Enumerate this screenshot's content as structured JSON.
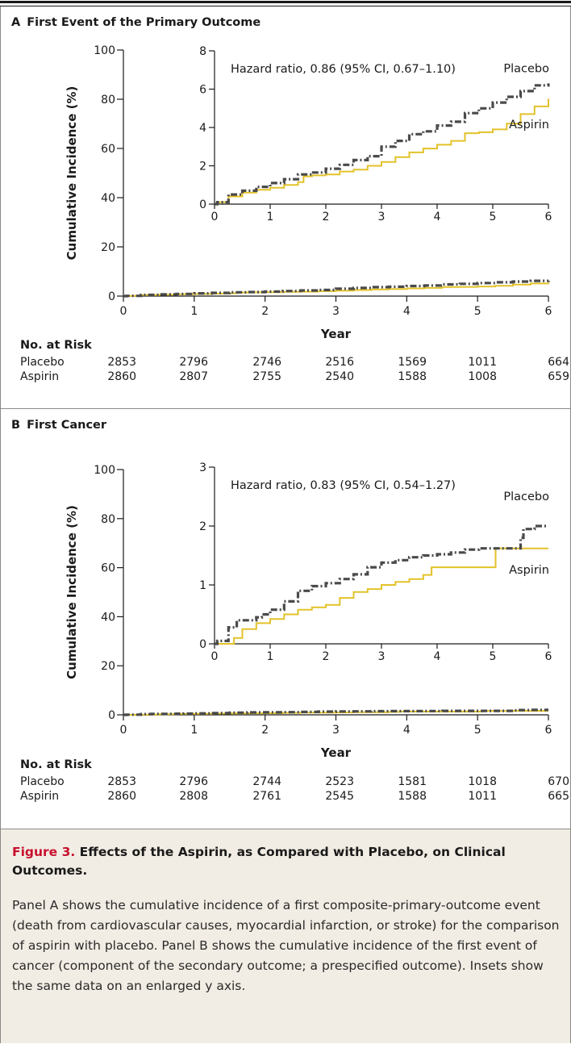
{
  "chart_data": [
    {
      "type": "line",
      "panel_letter": "A",
      "title": "First Event of the Primary Outcome",
      "xlabel": "Year",
      "ylabel": "Cumulative Incidence (%)",
      "xlim": [
        0,
        6
      ],
      "ylim": [
        0,
        100
      ],
      "x_ticks": [
        0,
        1,
        2,
        3,
        4,
        5,
        6
      ],
      "y_ticks": [
        0,
        20,
        40,
        60,
        80,
        100
      ],
      "series": [
        {
          "name": "Placebo",
          "color": "#4a4a4a",
          "style": "dash-dot",
          "points": [
            [
              0,
              0
            ],
            [
              0.05,
              0.1
            ],
            [
              0.25,
              0.5
            ],
            [
              0.5,
              0.7
            ],
            [
              0.75,
              0.9
            ],
            [
              1,
              1.1
            ],
            [
              1.25,
              1.3
            ],
            [
              1.5,
              1.55
            ],
            [
              1.75,
              1.65
            ],
            [
              2,
              1.85
            ],
            [
              2.25,
              2.05
            ],
            [
              2.5,
              2.3
            ],
            [
              2.75,
              2.5
            ],
            [
              3,
              3.0
            ],
            [
              3.25,
              3.3
            ],
            [
              3.5,
              3.65
            ],
            [
              3.75,
              3.8
            ],
            [
              4,
              4.1
            ],
            [
              4.25,
              4.3
            ],
            [
              4.5,
              4.75
            ],
            [
              4.75,
              5.0
            ],
            [
              5,
              5.3
            ],
            [
              5.25,
              5.6
            ],
            [
              5.5,
              5.9
            ],
            [
              5.75,
              6.2
            ],
            [
              6,
              6.3
            ]
          ]
        },
        {
          "name": "Aspirin",
          "color": "#e3c22a",
          "style": "solid",
          "points": [
            [
              0,
              0
            ],
            [
              0.05,
              0.1
            ],
            [
              0.25,
              0.4
            ],
            [
              0.5,
              0.6
            ],
            [
              0.75,
              0.75
            ],
            [
              1,
              0.85
            ],
            [
              1.25,
              1.0
            ],
            [
              1.5,
              1.15
            ],
            [
              1.6,
              1.45
            ],
            [
              1.75,
              1.5
            ],
            [
              2,
              1.55
            ],
            [
              2.25,
              1.7
            ],
            [
              2.5,
              1.8
            ],
            [
              2.75,
              2.0
            ],
            [
              3,
              2.2
            ],
            [
              3.25,
              2.45
            ],
            [
              3.5,
              2.7
            ],
            [
              3.75,
              2.9
            ],
            [
              4,
              3.1
            ],
            [
              4.25,
              3.3
            ],
            [
              4.5,
              3.7
            ],
            [
              4.75,
              3.75
            ],
            [
              5,
              3.9
            ],
            [
              5.25,
              4.2
            ],
            [
              5.5,
              4.7
            ],
            [
              5.75,
              5.1
            ],
            [
              6,
              5.5
            ]
          ]
        }
      ],
      "inset": {
        "xlim": [
          0,
          6
        ],
        "ylim": [
          0,
          8
        ],
        "x_ticks": [
          0,
          1,
          2,
          3,
          4,
          5,
          6
        ],
        "y_ticks": [
          0,
          2,
          4,
          6,
          8
        ],
        "annotation": "Hazard ratio, 0.86 (95% CI, 0.67–1.10)",
        "legend": [
          {
            "name": "Placebo",
            "x": 6,
            "y": 6.3
          },
          {
            "name": "Aspirin",
            "x": 6,
            "y": 4.3
          }
        ]
      },
      "risk_table": {
        "header": "No. at Risk",
        "rows": [
          {
            "label": "Placebo",
            "values": [
              "2853",
              "2796",
              "2746",
              "2516",
              "1569",
              "1011",
              "664"
            ]
          },
          {
            "label": "Aspirin",
            "values": [
              "2860",
              "2807",
              "2755",
              "2540",
              "1588",
              "1008",
              "659"
            ]
          }
        ]
      }
    },
    {
      "type": "line",
      "panel_letter": "B",
      "title": "First Cancer",
      "xlabel": "Year",
      "ylabel": "Cumulative Incidence (%)",
      "xlim": [
        0,
        6
      ],
      "ylim": [
        0,
        100
      ],
      "x_ticks": [
        0,
        1,
        2,
        3,
        4,
        5,
        6
      ],
      "y_ticks": [
        0,
        20,
        40,
        60,
        80,
        100
      ],
      "series": [
        {
          "name": "Placebo",
          "color": "#4a4a4a",
          "style": "dash-dot",
          "points": [
            [
              0,
              0
            ],
            [
              0.05,
              0.05
            ],
            [
              0.25,
              0.28
            ],
            [
              0.4,
              0.4
            ],
            [
              0.75,
              0.45
            ],
            [
              0.85,
              0.5
            ],
            [
              1,
              0.58
            ],
            [
              1.25,
              0.72
            ],
            [
              1.5,
              0.9
            ],
            [
              1.75,
              0.98
            ],
            [
              2,
              1.03
            ],
            [
              2.25,
              1.1
            ],
            [
              2.5,
              1.18
            ],
            [
              2.75,
              1.3
            ],
            [
              3,
              1.38
            ],
            [
              3.25,
              1.42
            ],
            [
              3.5,
              1.47
            ],
            [
              3.75,
              1.5
            ],
            [
              4,
              1.52
            ],
            [
              4.25,
              1.55
            ],
            [
              4.5,
              1.6
            ],
            [
              4.75,
              1.62
            ],
            [
              5,
              1.62
            ],
            [
              5.25,
              1.62
            ],
            [
              5.5,
              1.8
            ],
            [
              5.55,
              1.95
            ],
            [
              5.75,
              2.0
            ],
            [
              6,
              2.0
            ]
          ]
        },
        {
          "name": "Aspirin",
          "color": "#e3c22a",
          "style": "solid",
          "points": [
            [
              0,
              0
            ],
            [
              0.25,
              0.0
            ],
            [
              0.35,
              0.1
            ],
            [
              0.5,
              0.25
            ],
            [
              0.75,
              0.35
            ],
            [
              1,
              0.42
            ],
            [
              1.25,
              0.5
            ],
            [
              1.5,
              0.58
            ],
            [
              1.75,
              0.62
            ],
            [
              2,
              0.66
            ],
            [
              2.25,
              0.78
            ],
            [
              2.5,
              0.88
            ],
            [
              2.75,
              0.93
            ],
            [
              3,
              1.0
            ],
            [
              3.25,
              1.05
            ],
            [
              3.5,
              1.1
            ],
            [
              3.75,
              1.17
            ],
            [
              3.9,
              1.3
            ],
            [
              4.25,
              1.3
            ],
            [
              4.75,
              1.3
            ],
            [
              5,
              1.3
            ],
            [
              5.05,
              1.62
            ],
            [
              5.5,
              1.62
            ],
            [
              6,
              1.62
            ]
          ]
        }
      ],
      "inset": {
        "xlim": [
          0,
          6
        ],
        "ylim": [
          0,
          3
        ],
        "x_ticks": [
          0,
          1,
          2,
          3,
          4,
          5,
          6
        ],
        "y_ticks": [
          0,
          1,
          2,
          3
        ],
        "annotation": "Hazard ratio, 0.83 (95% CI, 0.54–1.27)",
        "legend": [
          {
            "name": "Placebo",
            "x": 6,
            "y": 2.25
          },
          {
            "name": "Aspirin",
            "x": 6,
            "y": 1.3
          }
        ]
      },
      "risk_table": {
        "header": "No. at Risk",
        "rows": [
          {
            "label": "Placebo",
            "values": [
              "2853",
              "2796",
              "2744",
              "2523",
              "1581",
              "1018",
              "670"
            ]
          },
          {
            "label": "Aspirin",
            "values": [
              "2860",
              "2808",
              "2761",
              "2545",
              "1588",
              "1011",
              "665"
            ]
          }
        ]
      }
    }
  ],
  "caption": {
    "figure_label": "Figure 3.",
    "title": "Effects of the Aspirin, as Compared with Placebo, on Clinical Outcomes.",
    "body": "Panel A shows the cumulative incidence of a first composite-primary-outcome event (death from cardiovascular causes, myocardial infarction, or stroke) for the comparison of aspirin with placebo. Panel B shows the cumulative incidence of the first event of cancer (component of the secondary outcome; a prespecified outcome). Insets show the same data on an enlarged y axis."
  }
}
